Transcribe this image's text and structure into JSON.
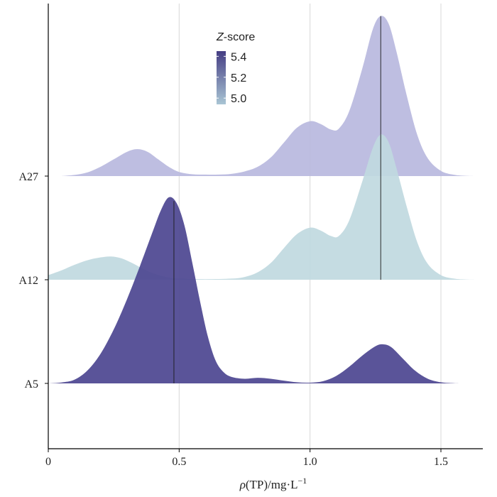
{
  "chart_data": {
    "type": "ridgeline",
    "xlabel_prefix": "ρ",
    "xlabel_main": "(TP)/mg·L",
    "xlabel_sup": "−1",
    "xlim": [
      0,
      1.66
    ],
    "x_ticks": [
      0,
      0.5,
      1.0,
      1.5
    ],
    "x_tick_labels": [
      "0",
      "0.5",
      "1.0",
      "1.5"
    ],
    "grid": "vertical",
    "legend": {
      "title_italic": "Z",
      "title_rest": "-score",
      "ticks": [
        5.4,
        5.2,
        5.0
      ],
      "tick_labels": [
        "5.4",
        "5.2",
        "5.0"
      ],
      "range": [
        4.94,
        5.45
      ],
      "color_low": "#a9c5d4",
      "color_high": "#453d83",
      "placement": "top-center"
    },
    "series": [
      {
        "name": "A5",
        "zscore": 5.45,
        "color": "#4c4590",
        "median": 0.48,
        "density": [
          {
            "x": 0.0,
            "y": 0.0
          },
          {
            "x": 0.05,
            "y": 0.005
          },
          {
            "x": 0.1,
            "y": 0.02
          },
          {
            "x": 0.15,
            "y": 0.07
          },
          {
            "x": 0.2,
            "y": 0.16
          },
          {
            "x": 0.25,
            "y": 0.29
          },
          {
            "x": 0.3,
            "y": 0.45
          },
          {
            "x": 0.35,
            "y": 0.63
          },
          {
            "x": 0.4,
            "y": 0.82
          },
          {
            "x": 0.43,
            "y": 0.93
          },
          {
            "x": 0.46,
            "y": 1.0
          },
          {
            "x": 0.49,
            "y": 0.97
          },
          {
            "x": 0.52,
            "y": 0.85
          },
          {
            "x": 0.55,
            "y": 0.65
          },
          {
            "x": 0.58,
            "y": 0.44
          },
          {
            "x": 0.61,
            "y": 0.25
          },
          {
            "x": 0.64,
            "y": 0.12
          },
          {
            "x": 0.67,
            "y": 0.06
          },
          {
            "x": 0.7,
            "y": 0.035
          },
          {
            "x": 0.75,
            "y": 0.025
          },
          {
            "x": 0.8,
            "y": 0.03
          },
          {
            "x": 0.85,
            "y": 0.025
          },
          {
            "x": 0.9,
            "y": 0.015
          },
          {
            "x": 0.95,
            "y": 0.006
          },
          {
            "x": 1.0,
            "y": 0.004
          },
          {
            "x": 1.05,
            "y": 0.012
          },
          {
            "x": 1.1,
            "y": 0.04
          },
          {
            "x": 1.15,
            "y": 0.09
          },
          {
            "x": 1.2,
            "y": 0.15
          },
          {
            "x": 1.25,
            "y": 0.2
          },
          {
            "x": 1.28,
            "y": 0.21
          },
          {
            "x": 1.31,
            "y": 0.195
          },
          {
            "x": 1.35,
            "y": 0.14
          },
          {
            "x": 1.4,
            "y": 0.07
          },
          {
            "x": 1.45,
            "y": 0.025
          },
          {
            "x": 1.5,
            "y": 0.006
          },
          {
            "x": 1.55,
            "y": 0.001
          },
          {
            "x": 1.58,
            "y": 0.0
          }
        ]
      },
      {
        "name": "A12",
        "zscore": 4.94,
        "color": "#c0d9e0",
        "median": 1.27,
        "density": [
          {
            "x": 0.0,
            "y": 0.025
          },
          {
            "x": 0.05,
            "y": 0.05
          },
          {
            "x": 0.1,
            "y": 0.08
          },
          {
            "x": 0.15,
            "y": 0.105
          },
          {
            "x": 0.2,
            "y": 0.12
          },
          {
            "x": 0.24,
            "y": 0.125
          },
          {
            "x": 0.28,
            "y": 0.115
          },
          {
            "x": 0.32,
            "y": 0.09
          },
          {
            "x": 0.36,
            "y": 0.06
          },
          {
            "x": 0.4,
            "y": 0.035
          },
          {
            "x": 0.45,
            "y": 0.015
          },
          {
            "x": 0.5,
            "y": 0.006
          },
          {
            "x": 0.6,
            "y": 0.003
          },
          {
            "x": 0.7,
            "y": 0.006
          },
          {
            "x": 0.75,
            "y": 0.015
          },
          {
            "x": 0.8,
            "y": 0.04
          },
          {
            "x": 0.85,
            "y": 0.09
          },
          {
            "x": 0.9,
            "y": 0.17
          },
          {
            "x": 0.95,
            "y": 0.245
          },
          {
            "x": 1.0,
            "y": 0.28
          },
          {
            "x": 1.04,
            "y": 0.265
          },
          {
            "x": 1.08,
            "y": 0.235
          },
          {
            "x": 1.11,
            "y": 0.235
          },
          {
            "x": 1.15,
            "y": 0.32
          },
          {
            "x": 1.2,
            "y": 0.53
          },
          {
            "x": 1.24,
            "y": 0.71
          },
          {
            "x": 1.27,
            "y": 0.78
          },
          {
            "x": 1.3,
            "y": 0.74
          },
          {
            "x": 1.33,
            "y": 0.6
          },
          {
            "x": 1.37,
            "y": 0.39
          },
          {
            "x": 1.41,
            "y": 0.2
          },
          {
            "x": 1.45,
            "y": 0.085
          },
          {
            "x": 1.5,
            "y": 0.025
          },
          {
            "x": 1.55,
            "y": 0.006
          },
          {
            "x": 1.6,
            "y": 0.001
          },
          {
            "x": 1.66,
            "y": 0.0
          }
        ]
      },
      {
        "name": "A27",
        "zscore": 5.15,
        "color": "#b9b8de",
        "median": 1.27,
        "density": [
          {
            "x": 0.05,
            "y": 0.0
          },
          {
            "x": 0.1,
            "y": 0.006
          },
          {
            "x": 0.15,
            "y": 0.02
          },
          {
            "x": 0.2,
            "y": 0.05
          },
          {
            "x": 0.25,
            "y": 0.09
          },
          {
            "x": 0.3,
            "y": 0.13
          },
          {
            "x": 0.34,
            "y": 0.145
          },
          {
            "x": 0.38,
            "y": 0.13
          },
          {
            "x": 0.42,
            "y": 0.09
          },
          {
            "x": 0.46,
            "y": 0.05
          },
          {
            "x": 0.5,
            "y": 0.022
          },
          {
            "x": 0.55,
            "y": 0.01
          },
          {
            "x": 0.6,
            "y": 0.008
          },
          {
            "x": 0.65,
            "y": 0.008
          },
          {
            "x": 0.7,
            "y": 0.012
          },
          {
            "x": 0.75,
            "y": 0.025
          },
          {
            "x": 0.8,
            "y": 0.05
          },
          {
            "x": 0.85,
            "y": 0.1
          },
          {
            "x": 0.9,
            "y": 0.18
          },
          {
            "x": 0.95,
            "y": 0.26
          },
          {
            "x": 1.0,
            "y": 0.295
          },
          {
            "x": 1.04,
            "y": 0.28
          },
          {
            "x": 1.08,
            "y": 0.25
          },
          {
            "x": 1.11,
            "y": 0.255
          },
          {
            "x": 1.15,
            "y": 0.35
          },
          {
            "x": 1.2,
            "y": 0.58
          },
          {
            "x": 1.24,
            "y": 0.79
          },
          {
            "x": 1.27,
            "y": 0.86
          },
          {
            "x": 1.3,
            "y": 0.82
          },
          {
            "x": 1.33,
            "y": 0.67
          },
          {
            "x": 1.37,
            "y": 0.43
          },
          {
            "x": 1.41,
            "y": 0.22
          },
          {
            "x": 1.45,
            "y": 0.095
          },
          {
            "x": 1.5,
            "y": 0.028
          },
          {
            "x": 1.55,
            "y": 0.007
          },
          {
            "x": 1.6,
            "y": 0.001
          },
          {
            "x": 1.66,
            "y": 0.0
          }
        ]
      }
    ]
  }
}
